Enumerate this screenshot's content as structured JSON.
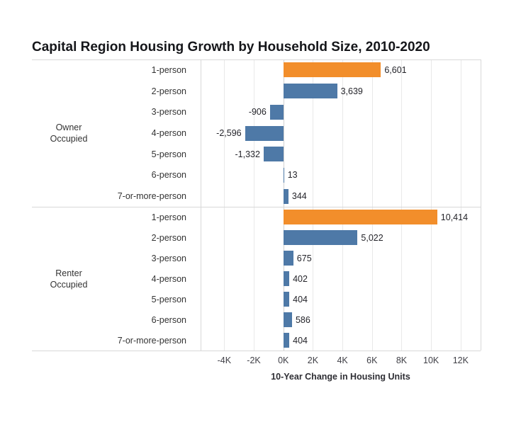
{
  "chart_data": {
    "type": "bar",
    "orientation": "horizontal",
    "title": "Capital Region Housing Growth by Household Size, 2010-2020",
    "xlabel": "10-Year Change in Housing Units",
    "grid": true,
    "legend": "none",
    "xlim": [
      -5600,
      13350
    ],
    "x_ticks": [
      {
        "label": "-4K",
        "value": -4000
      },
      {
        "label": "-2K",
        "value": -2000
      },
      {
        "label": "0K",
        "value": 0
      },
      {
        "label": "2K",
        "value": 2000
      },
      {
        "label": "4K",
        "value": 4000
      },
      {
        "label": "6K",
        "value": 6000
      },
      {
        "label": "8K",
        "value": 8000
      },
      {
        "label": "10K",
        "value": 10000
      },
      {
        "label": "12K",
        "value": 12000
      }
    ],
    "colors": {
      "bar_default": "#4e79a7",
      "bar_highlight": "#f28e2b",
      "gridline": "#e9e9e9",
      "zero_line": "#d2d2d2",
      "border": "#d8d8d8"
    },
    "groups": [
      {
        "label": "Owner Occupied",
        "rows": [
          {
            "category": "1-person",
            "value": 6601,
            "value_label": "6,601",
            "highlight": true
          },
          {
            "category": "2-person",
            "value": 3639,
            "value_label": "3,639",
            "highlight": false
          },
          {
            "category": "3-person",
            "value": -906,
            "value_label": "-906",
            "highlight": false
          },
          {
            "category": "4-person",
            "value": -2596,
            "value_label": "-2,596",
            "highlight": false
          },
          {
            "category": "5-person",
            "value": -1332,
            "value_label": "-1,332",
            "highlight": false
          },
          {
            "category": "6-person",
            "value": 13,
            "value_label": "13",
            "highlight": false
          },
          {
            "category": "7-or-more-person",
            "value": 344,
            "value_label": "344",
            "highlight": false
          }
        ]
      },
      {
        "label": "Renter Occupied",
        "rows": [
          {
            "category": "1-person",
            "value": 10414,
            "value_label": "10,414",
            "highlight": true
          },
          {
            "category": "2-person",
            "value": 5022,
            "value_label": "5,022",
            "highlight": false
          },
          {
            "category": "3-person",
            "value": 675,
            "value_label": "675",
            "highlight": false
          },
          {
            "category": "4-person",
            "value": 402,
            "value_label": "402",
            "highlight": false
          },
          {
            "category": "5-person",
            "value": 404,
            "value_label": "404",
            "highlight": false
          },
          {
            "category": "6-person",
            "value": 586,
            "value_label": "586",
            "highlight": false
          },
          {
            "category": "7-or-more-person",
            "value": 404,
            "value_label": "404",
            "highlight": false
          }
        ]
      }
    ]
  }
}
